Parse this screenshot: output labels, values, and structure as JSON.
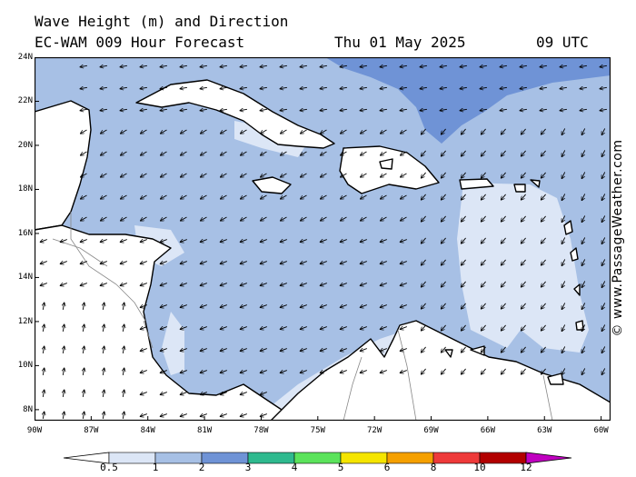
{
  "header": {
    "line1": "Wave Height (m) and Direction",
    "model": "EC-WAM 009 Hour Forecast",
    "date": "Thu 01 May 2025",
    "time": "09 UTC"
  },
  "map": {
    "lon_range": [
      -90,
      -59.5
    ],
    "lat_range": [
      7.5,
      24
    ],
    "lat_ticks": [
      "24N",
      "22N",
      "20N",
      "18N",
      "16N",
      "14N",
      "12N",
      "10N",
      "8N"
    ],
    "lat_values": [
      24,
      22,
      20,
      18,
      16,
      14,
      12,
      10,
      8
    ],
    "lon_ticks": [
      "90W",
      "87W",
      "84W",
      "81W",
      "78W",
      "75W",
      "72W",
      "69W",
      "66W",
      "63W",
      "60W"
    ],
    "lon_values": [
      -90,
      -87,
      -84,
      -81,
      -78,
      -75,
      -72,
      -69,
      -66,
      -63,
      -60
    ],
    "colors": {
      "sea_1_2": "#a7c0e5",
      "sea_05_1": "#dce6f6",
      "sea_2_3": "#6f93d6",
      "land": "#ffffff",
      "coast": "#000000",
      "border": "#888888",
      "arrow": "#000000"
    }
  },
  "colorbar": {
    "labels": [
      "0.5",
      "1",
      "2",
      "3",
      "4",
      "5",
      "6",
      "8",
      "10",
      "12"
    ],
    "colors": [
      "#dce6f6",
      "#a7c0e5",
      "#6f93d6",
      "#2fb98e",
      "#5be35b",
      "#f5e500",
      "#f5a000",
      "#ee3a3a",
      "#b20000",
      "#c000c0"
    ]
  },
  "watermark": "© www.PassageWeather.com"
}
